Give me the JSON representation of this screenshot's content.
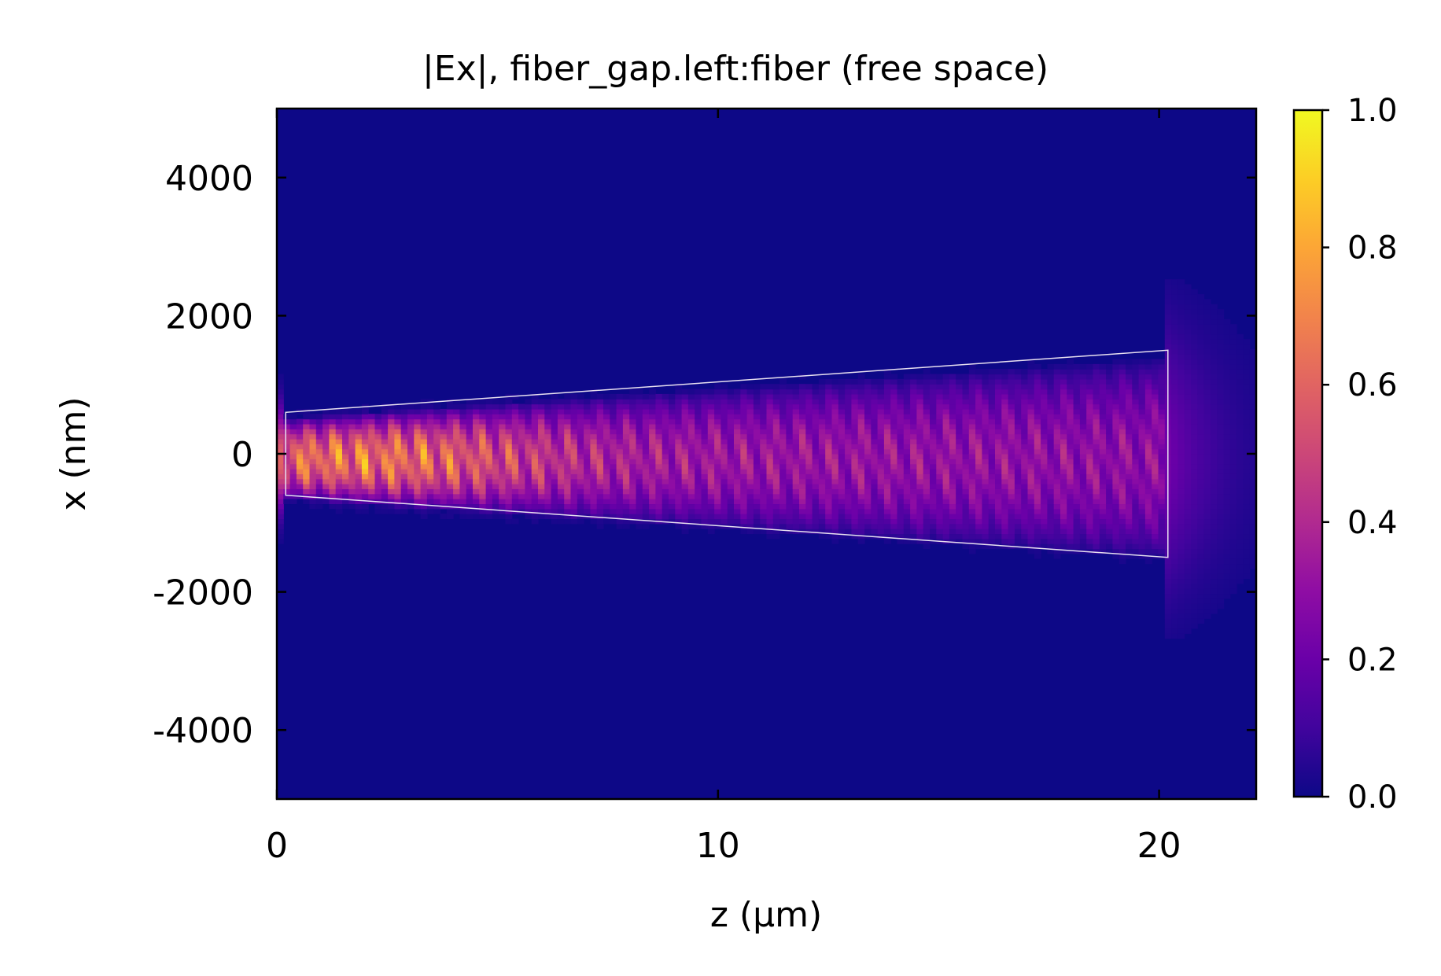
{
  "chart_data": {
    "type": "heatmap",
    "title": "|Ex|, fiber_gap.left:fiber (free space)",
    "xlabel": "z (µm)",
    "ylabel": "x (nm)",
    "xlim": [
      0,
      22.2
    ],
    "ylim": [
      5000,
      -5000
    ],
    "x_ticks": [
      0,
      10,
      20
    ],
    "x_tick_labels": [
      "0",
      "10",
      "20"
    ],
    "y_ticks": [
      -4000,
      -2000,
      0,
      2000,
      4000
    ],
    "y_tick_labels": [
      "-4000",
      "-2000",
      "0",
      "2000",
      "4000"
    ],
    "colormap": "plasma",
    "colorbar": {
      "range": [
        0.0,
        1.0
      ],
      "ticks": [
        0.0,
        0.2,
        0.4,
        0.6,
        0.8,
        1.0
      ],
      "tick_labels": [
        "0.0",
        "0.2",
        "0.4",
        "0.6",
        "0.8",
        "1.0"
      ]
    },
    "field_description": {
      "peak_value": 1.0,
      "peak_near_z": 2.0,
      "beam_center_x": 0
    },
    "taper_outline": {
      "z_start": 0.2,
      "z_end": 20.2,
      "half_width_start": 600,
      "half_width_end": 1500,
      "color": "#e8e0f0"
    },
    "background_color": "#0d0887",
    "grid": false
  }
}
